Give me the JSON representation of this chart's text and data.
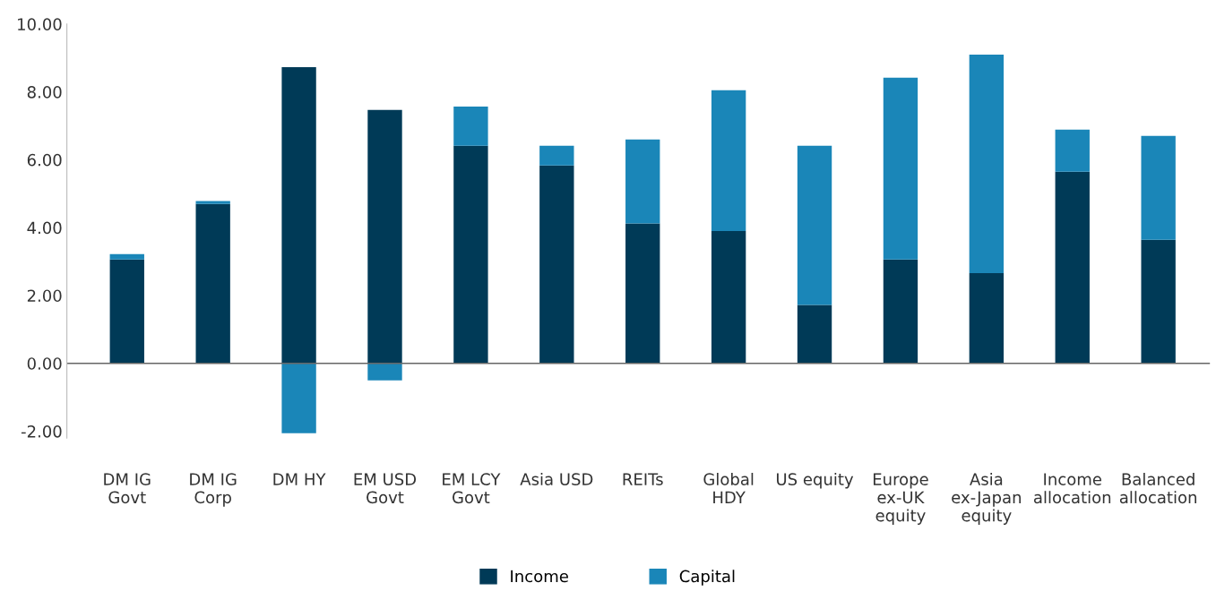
{
  "chart_data": {
    "type": "bar",
    "stacked": true,
    "categories": [
      "DM IG\nGovt",
      "DM IG\nCorp",
      "DM HY",
      "EM USD\nGovt",
      "EM LCY\nGovt",
      "Asia USD",
      "REITs",
      "Global\nHDY",
      "US equity",
      "Europe\nex-UK\nequity",
      "Asia\nex-Japan\nequity",
      "Income\nallocation",
      "Balanced\nallocation"
    ],
    "series": [
      {
        "name": "Income",
        "color": "#003a57",
        "values": [
          3.06,
          4.7,
          8.73,
          7.47,
          6.41,
          5.83,
          4.12,
          3.9,
          1.72,
          3.06,
          2.66,
          5.65,
          3.64
        ]
      },
      {
        "name": "Capital",
        "color": "#1a86b8",
        "values": [
          0.16,
          0.08,
          -2.06,
          -0.5,
          1.16,
          0.58,
          2.48,
          4.15,
          4.69,
          5.36,
          6.44,
          1.24,
          3.06
        ]
      }
    ],
    "ylim": [
      -2.2,
      10
    ],
    "yticks": [
      {
        "value": -2,
        "label": "-2.00"
      },
      {
        "value": 0,
        "label": "0.00"
      },
      {
        "value": 2,
        "label": "2.00"
      },
      {
        "value": 4,
        "label": "4.00"
      },
      {
        "value": 6,
        "label": "6.00"
      },
      {
        "value": 8,
        "label": "8.00"
      },
      {
        "value": 10,
        "label": "10.00"
      }
    ],
    "ref_lines": [
      {
        "axis": "y",
        "value": 0,
        "color": "#666666"
      }
    ],
    "grid": false,
    "legend": "bottom"
  }
}
